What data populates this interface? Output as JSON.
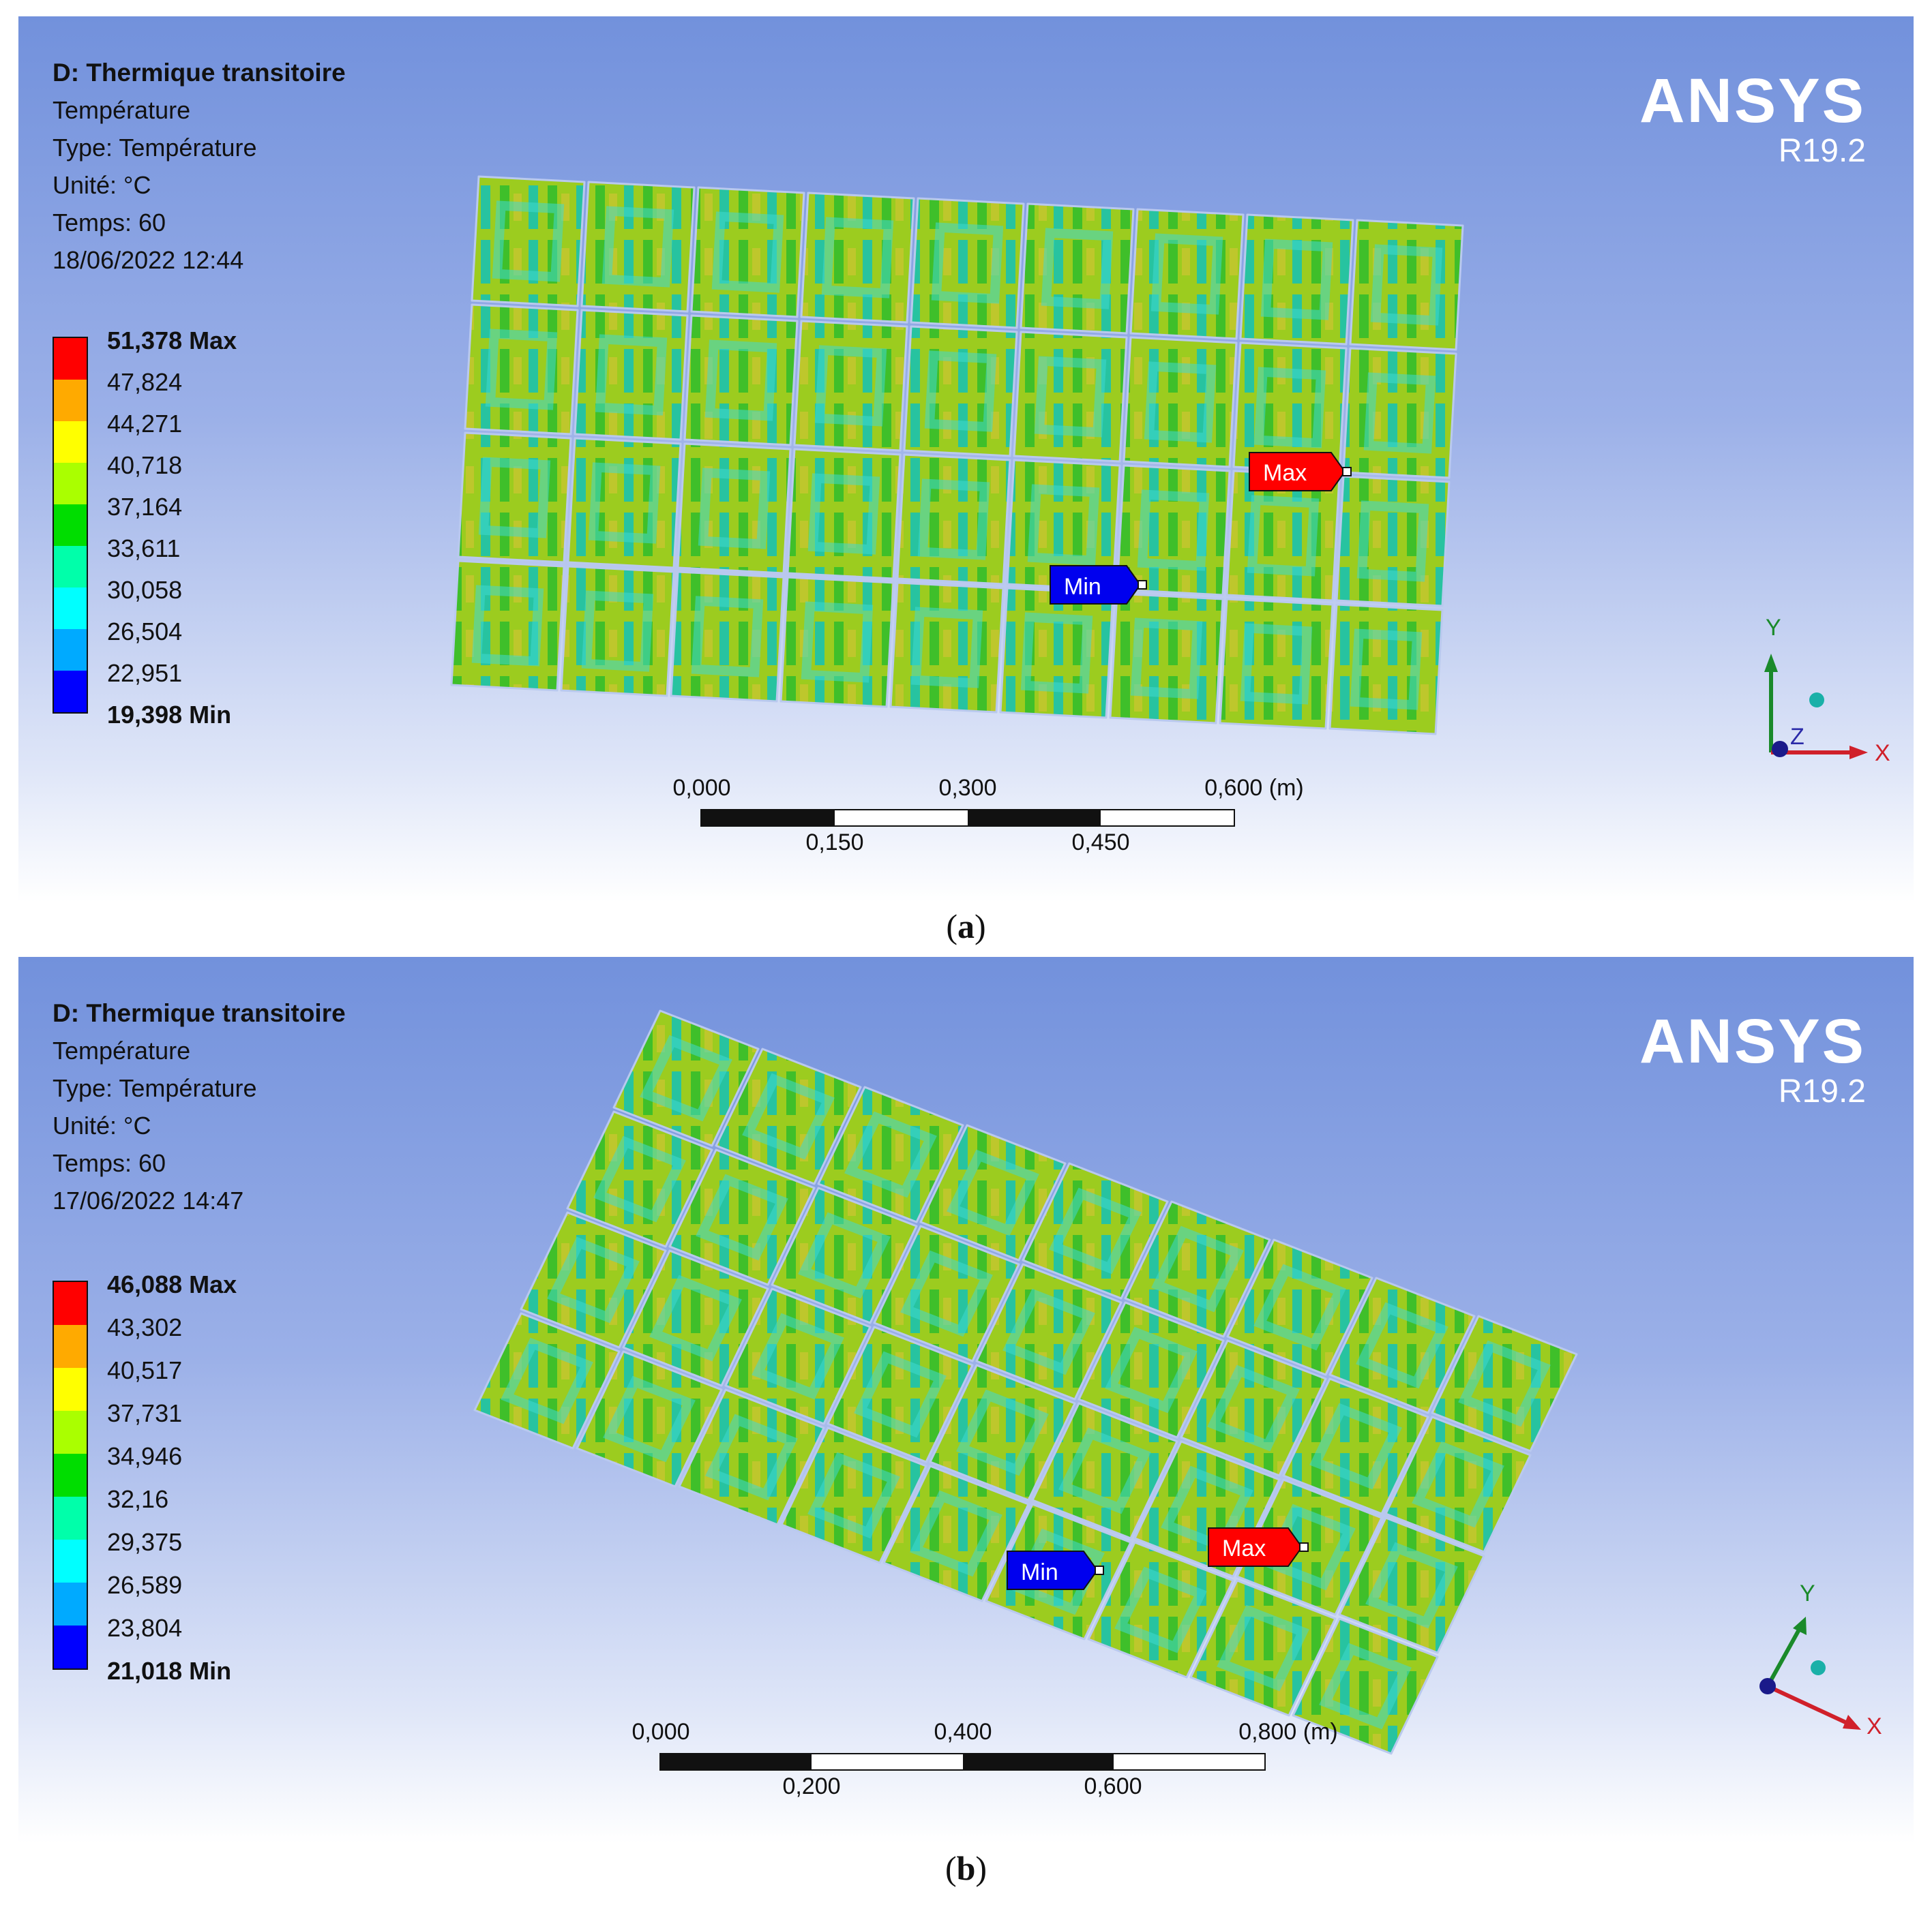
{
  "panels": [
    {
      "title": "D: Thermique transitoire",
      "lines": [
        "Température",
        "Type: Température",
        "Unité: °C",
        "Temps: 60",
        "18/06/2022 12:44"
      ],
      "legend_values": [
        "51,378 Max",
        "47,824",
        "44,271",
        "40,718",
        "37,164",
        "33,611",
        "30,058",
        "26,504",
        "22,951",
        "19,398 Min"
      ],
      "scale_top": [
        "0,000",
        "0,300",
        "0,600 (m)"
      ],
      "scale_bottom": [
        "0,150",
        "0,450"
      ],
      "max_label": "Max",
      "min_label": "Min",
      "caption_letter": "a"
    },
    {
      "title": "D: Thermique transitoire",
      "lines": [
        "Température",
        "Type: Température",
        "Unité: °C",
        "Temps: 60",
        "17/06/2022 14:47"
      ],
      "legend_values": [
        "46,088 Max",
        "43,302",
        "40,517",
        "37,731",
        "34,946",
        "32,16",
        "29,375",
        "26,589",
        "23,804",
        "21,018 Min"
      ],
      "scale_top": [
        "0,000",
        "0,400",
        "0,800 (m)"
      ],
      "scale_bottom": [
        "0,200",
        "0,600"
      ],
      "max_label": "Max",
      "min_label": "Min",
      "caption_letter": "b"
    }
  ],
  "brand": {
    "name": "ANSYS",
    "version": "R19.2"
  },
  "axes": {
    "x": "X",
    "y": "Y",
    "z": "Z"
  },
  "legend_colors": [
    "#ff0000",
    "#ffaa00",
    "#ffff00",
    "#aaff00",
    "#00dd00",
    "#00ffaa",
    "#00ffff",
    "#00aaff",
    "#0000ff"
  ],
  "mesh_colors": {
    "body": "#9ccc1f",
    "green": "#3fbf2a",
    "teal": "#27c3a0",
    "cyan": "#3fd8d0",
    "hot": "#e0c23a"
  },
  "marker_colors": {
    "max": "#ff0000",
    "min": "#0000ee"
  }
}
